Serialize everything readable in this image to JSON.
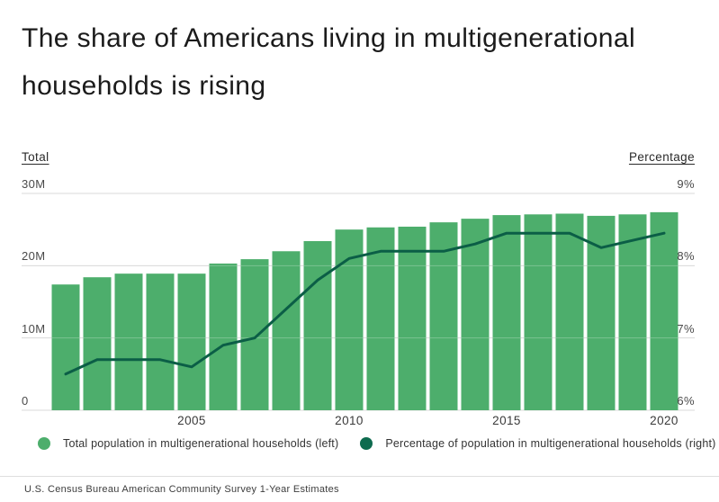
{
  "title": {
    "line1": "The share of Americans living in multigenerational",
    "line2": "households is rising"
  },
  "axes": {
    "left_title": "Total",
    "right_title": "Percentage",
    "left_ticks": [
      "30M",
      "20M",
      "10M",
      "0"
    ],
    "right_ticks": [
      "9%",
      "8%",
      "7%",
      "6%"
    ],
    "x_ticks": [
      "2005",
      "2010",
      "2015",
      "2020"
    ]
  },
  "legend": {
    "items": [
      {
        "label": "Total population in multigenerational households (left)",
        "color": "#4DAE6C"
      },
      {
        "label": "Percentage of population in multigenerational households (right)",
        "color": "#0E6B4F"
      }
    ]
  },
  "source": "U.S. Census Bureau American Community Survey 1-Year Estimates",
  "colors": {
    "bar": "#4DAE6C",
    "line": "#0B5E46",
    "grid": "#D8D8D8",
    "title_text": "#1B1B1B"
  },
  "chart_data": {
    "type": "combo",
    "x": [
      2001,
      2002,
      2003,
      2004,
      2005,
      2006,
      2007,
      2008,
      2009,
      2010,
      2011,
      2012,
      2013,
      2014,
      2015,
      2016,
      2017,
      2018,
      2019,
      2020
    ],
    "series": [
      {
        "name": "Total population in multigenerational households (left)",
        "type": "bar",
        "axis": "left",
        "unit": "millions",
        "color": "#4DAE6C",
        "values": [
          17.4,
          18.4,
          18.9,
          18.9,
          18.9,
          20.3,
          20.9,
          22.0,
          23.4,
          25.0,
          25.3,
          25.4,
          26.0,
          26.5,
          27.0,
          27.1,
          27.2,
          26.9,
          27.1,
          27.4
        ]
      },
      {
        "name": "Percentage of population in multigenerational households (right)",
        "type": "line",
        "axis": "right",
        "unit": "%",
        "color": "#0B5E46",
        "values": [
          6.5,
          6.7,
          6.7,
          6.7,
          6.6,
          6.9,
          7.0,
          7.4,
          7.8,
          8.1,
          8.2,
          8.2,
          8.2,
          8.3,
          8.45,
          8.45,
          8.45,
          8.25,
          8.35,
          8.45
        ]
      }
    ],
    "left_axis": {
      "title": "Total",
      "range_millions": [
        0,
        30
      ],
      "tick_labels": [
        "0",
        "10M",
        "20M",
        "30M"
      ]
    },
    "right_axis": {
      "title": "Percentage",
      "range_percent": [
        6,
        9
      ],
      "tick_labels": [
        "6%",
        "7%",
        "8%",
        "9%"
      ]
    },
    "x_tick_labels": [
      "2005",
      "2010",
      "2015",
      "2020"
    ],
    "grid": true,
    "legend_position": "bottom"
  }
}
